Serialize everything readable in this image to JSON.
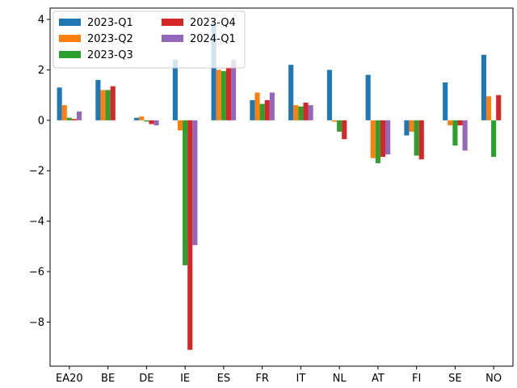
{
  "chart_data": {
    "type": "bar",
    "title": "",
    "xlabel": "",
    "ylabel": "",
    "categories": [
      "EA20",
      "BE",
      "DE",
      "IE",
      "ES",
      "FR",
      "IT",
      "NL",
      "AT",
      "FI",
      "SE",
      "NO"
    ],
    "ylim": [
      -9.75,
      4.45
    ],
    "yticks": [
      -8,
      -6,
      -4,
      -2,
      0,
      2,
      4
    ],
    "ytick_labels": [
      "−8",
      "−6",
      "−4",
      "−2",
      "0",
      "2",
      "4"
    ],
    "grid": false,
    "legend_position": "top-left",
    "series": [
      {
        "name": "2023-Q1",
        "color": "#1f77b4",
        "values": [
          1.3,
          1.6,
          0.1,
          2.4,
          3.9,
          0.8,
          2.2,
          2.0,
          1.8,
          -0.6,
          1.5,
          2.6
        ]
      },
      {
        "name": "2023-Q2",
        "color": "#ff7f0e",
        "values": [
          0.6,
          1.2,
          0.15,
          -0.4,
          2.0,
          1.1,
          0.6,
          -0.05,
          -1.5,
          -0.45,
          -0.2,
          0.95
        ]
      },
      {
        "name": "2023-Q3",
        "color": "#2ca02c",
        "values": [
          0.1,
          1.2,
          -0.05,
          -5.75,
          1.95,
          0.65,
          0.55,
          -0.45,
          -1.7,
          -1.4,
          -1.0,
          -1.45
        ]
      },
      {
        "name": "2023-Q4",
        "color": "#d62728",
        "values": [
          0.05,
          1.35,
          -0.15,
          -9.1,
          2.1,
          0.8,
          0.7,
          -0.75,
          -1.45,
          -1.55,
          -0.2,
          1.0
        ]
      },
      {
        "name": "2024-Q1",
        "color": "#9467bd",
        "values": [
          0.35,
          null,
          -0.2,
          -4.95,
          2.4,
          1.1,
          0.6,
          null,
          -1.35,
          null,
          -1.2,
          null
        ]
      }
    ]
  }
}
